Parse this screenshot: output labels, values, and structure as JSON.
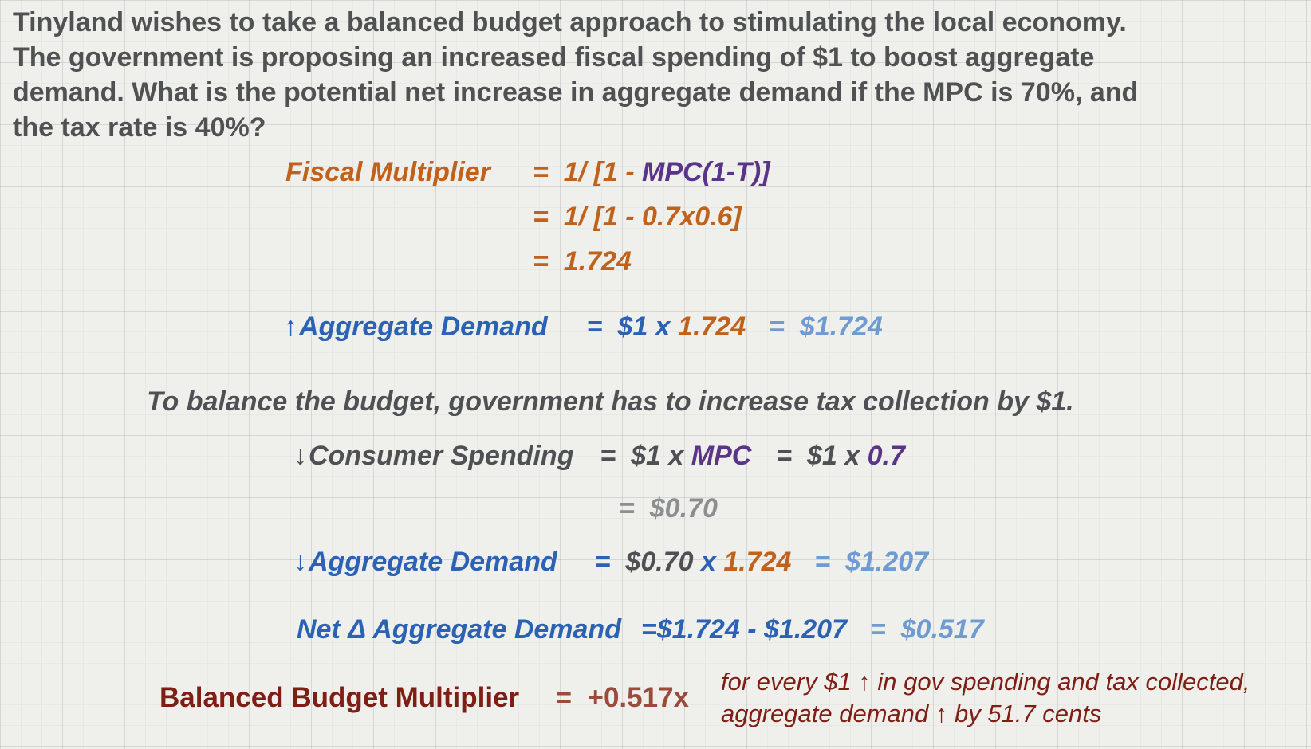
{
  "question": {
    "line1": "Tinyland wishes to take a balanced budget approach to stimulating the local economy.",
    "line2": "The government is proposing an increased fiscal spending of $1 to boost aggregate",
    "line3": "demand.  What is the potential net increase in aggregate demand if the MPC is 70%, and",
    "line4": "the tax rate is 40%?"
  },
  "fiscal_multiplier": {
    "label": "Fiscal Multiplier",
    "eq1": "=",
    "formula_a": "1/ [1 - ",
    "formula_b": "MPC(1-T)]",
    "eq2": "=",
    "step2": "1/ [1 - 0.7x0.6]",
    "eq3": "=",
    "result": "1.724"
  },
  "ad_increase": {
    "arrow": "↑",
    "label": "Aggregate Demand",
    "eq1": "=",
    "expr_a": "$1 x ",
    "expr_b": "1.724",
    "eq2": "=",
    "result": "$1.724"
  },
  "balance_note": "To balance the budget, government has to increase tax collection by $1.",
  "consumer_spending": {
    "arrow": "↓",
    "label": "Consumer Spending",
    "eq1": "=",
    "expr_a": "$1 x ",
    "expr_b": "MPC",
    "eq2": "=",
    "expr_c": "$1 x ",
    "expr_d": "0.7",
    "eq3": "=",
    "result": "$0.70"
  },
  "ad_decrease": {
    "arrow": "↓",
    "label": "Aggregate Demand",
    "eq1": "=",
    "expr_a": "$0.70",
    "expr_b": " x ",
    "expr_c": "1.724",
    "eq2": "=",
    "result": "$1.207"
  },
  "net_ad": {
    "label": "Net Δ Aggregate Demand",
    "eq1": "=",
    "expr": "$1.724 - $1.207",
    "eq2": "=",
    "result": "$0.517"
  },
  "bbm": {
    "label": "Balanced Budget Multiplier",
    "eq": "=",
    "value": "+0.517x",
    "note_line1": "for every $1 ↑ in gov spending and tax collected,",
    "note_line2": "aggregate demand ↑ by 51.7 cents"
  },
  "colors": {
    "orange": "#c0611c",
    "purple": "#5a3487",
    "blue": "#2b62b3",
    "light_blue": "#6e9bd2",
    "gray": "#4f5054",
    "light_gray": "#8d8e90",
    "dark_red": "#7f1e14"
  }
}
